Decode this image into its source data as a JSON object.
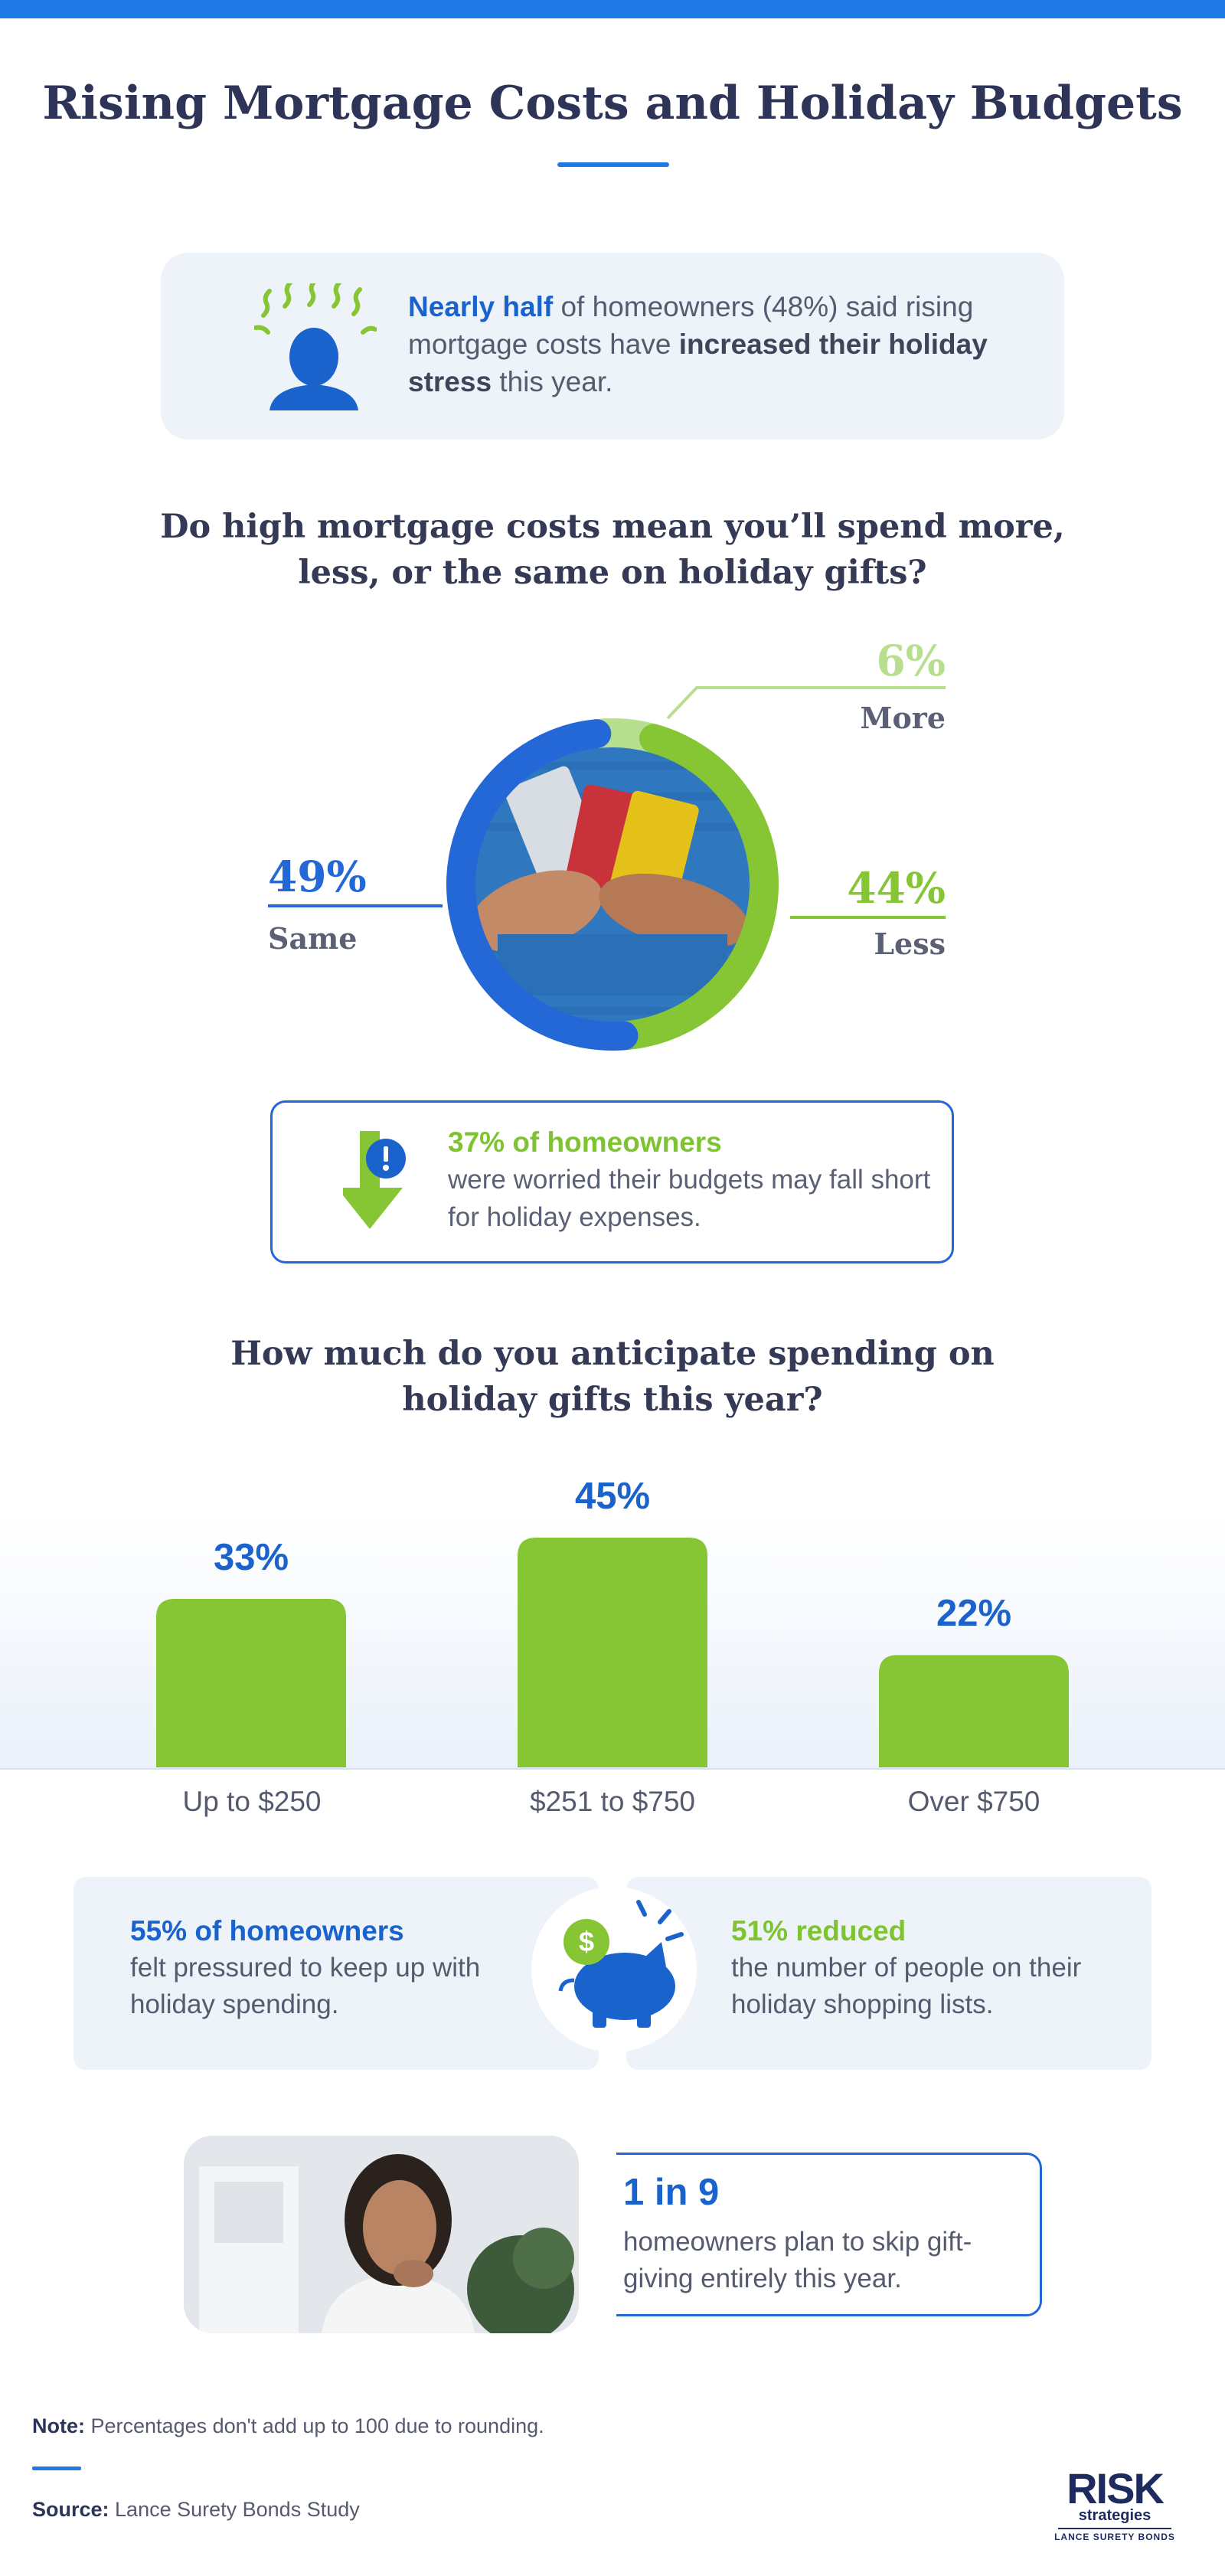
{
  "header": {
    "title": "Rising Mortgage Costs and Holiday Budgets"
  },
  "stress_callout": {
    "icon": "stressed-person-icon",
    "lead": "Nearly half",
    "text_1": " of homeowners (48%) said rising mortgage costs have ",
    "emphasis": "increased their holiday stress",
    "text_2": " this year."
  },
  "question_1": {
    "line_1": "Do high mortgage costs mean you’ll spend more,",
    "line_2": "less, or the same on holiday gifts?"
  },
  "question_2": {
    "line_1": "How much do you anticipate spending on",
    "line_2": "holiday gifts this year?"
  },
  "worry_callout": {
    "icon": "down-arrow-alert-icon",
    "headline": "37% of homeowners",
    "text": "were worried their budgets may fall short for holiday expenses."
  },
  "pressure_stat": {
    "headline": "55% of homeowners",
    "text": "felt pressured to keep up with holiday spending."
  },
  "reduce_stat": {
    "headline": "51% reduced",
    "text": "the number of people on their holiday shopping lists."
  },
  "piggy_icon": "piggy-bank-dollar-icon",
  "skip_stat": {
    "headline": "1 in 9",
    "text": "homeowners plan to skip gift-giving entirely this year."
  },
  "footer": {
    "note_label": "Note:",
    "note_text": " Percentages don't add up to 100 due to rounding.",
    "source_label": "Source:",
    "source_text": " Lance Surety Bonds Study",
    "logo_main": "RISK",
    "logo_sub": "strategies",
    "logo_small": "LANCE SURETY BONDS"
  },
  "colors": {
    "brand_blue": "#1f7ae6",
    "dark_blue": "#2168d6",
    "green": "#7ec430",
    "light_green": "#b7df8f",
    "navy": "#2d3457"
  },
  "chart_data": [
    {
      "type": "pie",
      "variant": "donut",
      "labels": [
        "More",
        "Less",
        "Same"
      ],
      "values": [
        6,
        44,
        49
      ],
      "value_labels": [
        "6%",
        "44%",
        "49%"
      ],
      "colors": [
        "#b7df8f",
        "#86c534",
        "#2468d8"
      ]
    },
    {
      "type": "bar",
      "categories": [
        "Up to $250",
        "$251 to $750",
        "Over $750"
      ],
      "values": [
        33,
        45,
        22
      ],
      "value_labels": [
        "33%",
        "45%",
        "22%"
      ],
      "color": "#86c534",
      "ylim": [
        0,
        45
      ]
    }
  ]
}
